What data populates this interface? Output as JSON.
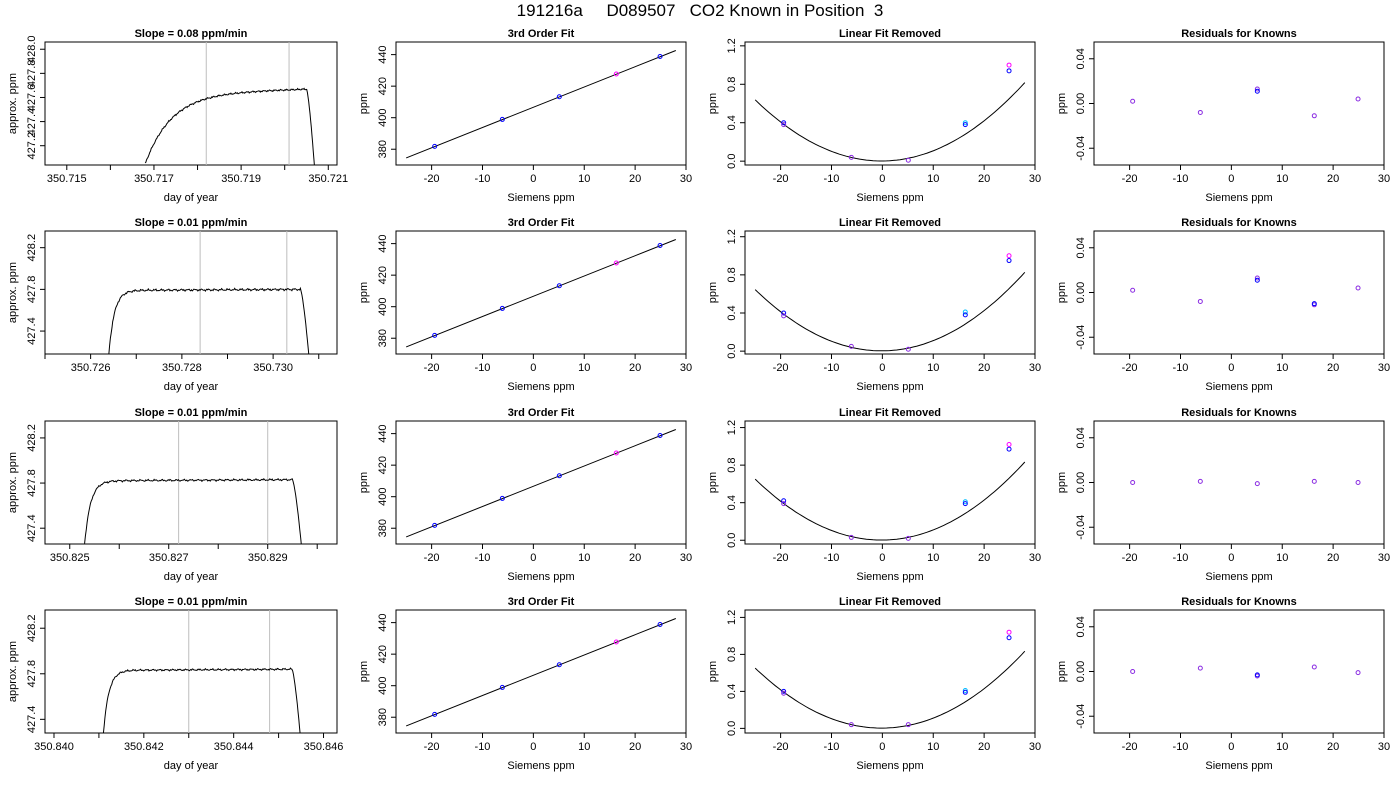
{
  "page_title": "191216a     D089507   CO2 Known in Position  3",
  "colors": {
    "line": "#000000",
    "frame": "#000000",
    "window_marker": "#bebebe",
    "point_blue": "#0000ff",
    "point_magenta": "#ff00ff",
    "point_cyan": "#00bfff",
    "point_purple": "#8a2be2"
  },
  "chart_data": [
    {
      "type": "line",
      "title": "Slope =  0.08  ppm/min",
      "xlabel": "day of year",
      "ylabel": "approx. ppm",
      "xlim": [
        350.7145,
        350.7212
      ],
      "ylim": [
        427.04,
        428.06
      ],
      "xticks": [
        350.715,
        350.716,
        350.717,
        350.718,
        350.719,
        350.72,
        350.721
      ],
      "xtick_labels": [
        "350.715",
        "",
        "350.717",
        "",
        "350.719",
        "",
        "350.721"
      ],
      "yticks": [
        427.2,
        427.4,
        427.6,
        427.8,
        428.0
      ],
      "ytick_labels": [
        "427.2",
        "427.4",
        "427.6",
        "427.8",
        "428.0"
      ],
      "window_markers": [
        350.7182,
        350.7201
      ],
      "trace": {
        "start": 350.7168,
        "end": 350.7207,
        "base": 427.05,
        "plateau": 427.63,
        "rise_time": 0.0006,
        "ramp_to": 350.7205,
        "ramp_level": 427.67,
        "noise": 0.008
      }
    },
    {
      "type": "line",
      "title": "Slope =  0.01  ppm/min",
      "xlabel": "day of year",
      "ylabel": "approx. ppm",
      "xlim": [
        350.725,
        350.7314
      ],
      "ylim": [
        427.18,
        428.36
      ],
      "xticks": [
        350.725,
        350.726,
        350.727,
        350.728,
        350.729,
        350.73,
        350.731
      ],
      "xtick_labels": [
        "",
        "350.726",
        "",
        "350.728",
        "",
        "350.730",
        ""
      ],
      "yticks": [
        427.4,
        427.8,
        428.2
      ],
      "ytick_labels": [
        "427.4",
        "427.8",
        "428.2"
      ],
      "window_markers": [
        350.7284,
        350.7303
      ],
      "trace": {
        "start": 350.7264,
        "end": 350.7308,
        "base": 427.18,
        "plateau": 427.79,
        "rise_time": 0.00012,
        "ramp_to": 350.7306,
        "ramp_level": 427.8,
        "noise": 0.012
      }
    },
    {
      "type": "line",
      "title": "Slope =  0.01  ppm/min",
      "xlabel": "day of year",
      "ylabel": "approx. ppm",
      "xlim": [
        350.8245,
        350.8304
      ],
      "ylim": [
        427.26,
        428.35
      ],
      "xticks": [
        350.825,
        350.826,
        350.827,
        350.828,
        350.829,
        350.83
      ],
      "xtick_labels": [
        "350.825",
        "",
        "350.827",
        "",
        "350.829",
        ""
      ],
      "yticks": [
        427.4,
        427.8,
        428.2
      ],
      "ytick_labels": [
        "427.4",
        "427.8",
        "428.2"
      ],
      "window_markers": [
        350.8272,
        350.829
      ],
      "trace": {
        "start": 350.8253,
        "end": 350.8297,
        "base": 427.26,
        "plateau": 427.82,
        "rise_time": 0.00012,
        "ramp_to": 350.8295,
        "ramp_level": 427.83,
        "noise": 0.01
      }
    },
    {
      "type": "line",
      "title": "Slope =  0.01  ppm/min",
      "xlabel": "day of year",
      "ylabel": "approx. ppm",
      "xlim": [
        350.8398,
        350.8463
      ],
      "ylim": [
        427.28,
        428.36
      ],
      "xticks": [
        350.84,
        350.841,
        350.842,
        350.843,
        350.844,
        350.845,
        350.846
      ],
      "xtick_labels": [
        "350.840",
        "",
        "350.842",
        "",
        "350.844",
        "",
        "350.846"
      ],
      "yticks": [
        427.4,
        427.8,
        428.2
      ],
      "ytick_labels": [
        "427.4",
        "427.8",
        "428.2"
      ],
      "window_markers": [
        350.843,
        350.8448
      ],
      "trace": {
        "start": 350.8411,
        "end": 350.8455,
        "base": 427.28,
        "plateau": 427.83,
        "rise_time": 0.00012,
        "ramp_to": 350.8453,
        "ramp_level": 427.84,
        "noise": 0.009
      }
    },
    {
      "type": "scatter",
      "title": "3rd Order Fit",
      "xlabel": "Siemens ppm",
      "ylabel": "ppm",
      "xlim": [
        -27,
        30
      ],
      "ylim": [
        370,
        448
      ],
      "xticks": [
        -20,
        -10,
        0,
        10,
        20,
        30
      ],
      "xtick_labels": [
        "-20",
        "-10",
        "0",
        "10",
        "20",
        "30"
      ],
      "yticks": [
        380,
        400,
        420,
        440
      ],
      "ytick_labels": [
        "380",
        "400",
        "420",
        "440"
      ],
      "x": [
        -19.4,
        -6.1,
        5.1,
        16.3,
        24.9
      ],
      "y": [
        381.8,
        398.9,
        413.3,
        427.7,
        438.8
      ],
      "point_colors": [
        "blue",
        "blue",
        "blue",
        "magenta",
        "blue"
      ],
      "fit_line": {
        "x": [
          -25,
          28
        ],
        "y": [
          374.5,
          442.6
        ]
      }
    },
    {
      "type": "scatter",
      "title": "3rd Order Fit",
      "xlabel": "Siemens ppm",
      "ylabel": "ppm",
      "xlim": [
        -27,
        30
      ],
      "ylim": [
        370,
        448
      ],
      "xticks": [
        -20,
        -10,
        0,
        10,
        20,
        30
      ],
      "xtick_labels": [
        "-20",
        "-10",
        "0",
        "10",
        "20",
        "30"
      ],
      "yticks": [
        380,
        400,
        420,
        440
      ],
      "ytick_labels": [
        "380",
        "400",
        "420",
        "440"
      ],
      "x": [
        -19.4,
        -6.1,
        5.1,
        16.3,
        24.9
      ],
      "y": [
        381.8,
        398.9,
        413.3,
        427.7,
        438.8
      ],
      "point_colors": [
        "blue",
        "blue",
        "blue",
        "magenta",
        "blue"
      ],
      "fit_line": {
        "x": [
          -25,
          28
        ],
        "y": [
          374.5,
          442.6
        ]
      }
    },
    {
      "type": "scatter",
      "title": "3rd Order Fit",
      "xlabel": "Siemens ppm",
      "ylabel": "ppm",
      "xlim": [
        -27,
        30
      ],
      "ylim": [
        370,
        448
      ],
      "xticks": [
        -20,
        -10,
        0,
        10,
        20,
        30
      ],
      "xtick_labels": [
        "-20",
        "-10",
        "0",
        "10",
        "20",
        "30"
      ],
      "yticks": [
        380,
        400,
        420,
        440
      ],
      "ytick_labels": [
        "380",
        "400",
        "420",
        "440"
      ],
      "x": [
        -19.4,
        -6.1,
        5.1,
        16.3,
        24.9
      ],
      "y": [
        381.8,
        398.9,
        413.3,
        427.7,
        438.8
      ],
      "point_colors": [
        "blue",
        "blue",
        "blue",
        "magenta",
        "blue"
      ],
      "fit_line": {
        "x": [
          -25,
          28
        ],
        "y": [
          374.5,
          442.6
        ]
      }
    },
    {
      "type": "scatter",
      "title": "3rd Order Fit",
      "xlabel": "Siemens ppm",
      "ylabel": "ppm",
      "xlim": [
        -27,
        30
      ],
      "ylim": [
        370,
        448
      ],
      "xticks": [
        -20,
        -10,
        0,
        10,
        20,
        30
      ],
      "xtick_labels": [
        "-20",
        "-10",
        "0",
        "10",
        "20",
        "30"
      ],
      "yticks": [
        380,
        400,
        420,
        440
      ],
      "ytick_labels": [
        "380",
        "400",
        "420",
        "440"
      ],
      "x": [
        -19.4,
        -6.1,
        5.1,
        16.3,
        24.9
      ],
      "y": [
        381.8,
        398.9,
        413.3,
        427.7,
        438.8
      ],
      "point_colors": [
        "blue",
        "blue",
        "blue",
        "magenta",
        "blue"
      ],
      "fit_line": {
        "x": [
          -25,
          28
        ],
        "y": [
          374.5,
          442.6
        ]
      }
    },
    {
      "type": "scatter",
      "title": "Linear Fit Removed",
      "xlabel": "Siemens ppm",
      "ylabel": "ppm",
      "xlim": [
        -27,
        30
      ],
      "ylim": [
        -0.04,
        1.24
      ],
      "xticks": [
        -20,
        -10,
        0,
        10,
        20,
        30
      ],
      "xtick_labels": [
        "-20",
        "-10",
        "0",
        "10",
        "20",
        "30"
      ],
      "yticks": [
        0.0,
        0.4,
        0.8,
        1.2
      ],
      "ytick_labels": [
        "0.0",
        "0.4",
        "0.8",
        "1.2"
      ],
      "x": [
        -19.4,
        -19.4,
        -6.1,
        5.1,
        16.3,
        16.3,
        24.9,
        24.9
      ],
      "y": [
        0.4,
        0.38,
        0.04,
        0.01,
        0.4,
        0.38,
        0.94,
        1.0
      ],
      "point_colors": [
        "blue",
        "purple",
        "purple",
        "purple",
        "cyan",
        "blue",
        "blue",
        "magenta"
      ],
      "curve": {
        "x": [
          -25,
          28
        ],
        "a": 0.00103,
        "b": 0.0003,
        "c": 0.002
      }
    },
    {
      "type": "scatter",
      "title": "Linear Fit Removed",
      "xlabel": "Siemens ppm",
      "ylabel": "ppm",
      "xlim": [
        -27,
        30
      ],
      "ylim": [
        -0.03,
        1.26
      ],
      "xticks": [
        -20,
        -10,
        0,
        10,
        20,
        30
      ],
      "xtick_labels": [
        "-20",
        "-10",
        "0",
        "10",
        "20",
        "30"
      ],
      "yticks": [
        0.0,
        0.4,
        0.8,
        1.2
      ],
      "ytick_labels": [
        "0.0",
        "0.4",
        "0.8",
        "1.2"
      ],
      "x": [
        -19.4,
        -19.4,
        -6.1,
        5.1,
        16.3,
        16.3,
        24.9,
        24.9
      ],
      "y": [
        0.4,
        0.37,
        0.05,
        0.02,
        0.41,
        0.38,
        0.95,
        1.0
      ],
      "point_colors": [
        "blue",
        "purple",
        "purple",
        "purple",
        "cyan",
        "blue",
        "blue",
        "magenta"
      ],
      "curve": {
        "x": [
          -25,
          28
        ],
        "a": 0.00104,
        "b": 0.0003,
        "c": 0.003
      }
    },
    {
      "type": "scatter",
      "title": "Linear Fit Removed",
      "xlabel": "Siemens ppm",
      "ylabel": "ppm",
      "xlim": [
        -27,
        30
      ],
      "ylim": [
        -0.04,
        1.27
      ],
      "xticks": [
        -20,
        -10,
        0,
        10,
        20,
        30
      ],
      "xtick_labels": [
        "-20",
        "-10",
        "0",
        "10",
        "20",
        "30"
      ],
      "yticks": [
        0.0,
        0.4,
        0.8,
        1.2
      ],
      "ytick_labels": [
        "0.0",
        "0.4",
        "0.8",
        "1.2"
      ],
      "x": [
        -19.4,
        -19.4,
        -6.1,
        5.1,
        16.3,
        16.3,
        24.9,
        24.9
      ],
      "y": [
        0.42,
        0.39,
        0.03,
        0.02,
        0.41,
        0.39,
        0.97,
        1.02
      ],
      "point_colors": [
        "blue",
        "purple",
        "purple",
        "purple",
        "cyan",
        "blue",
        "blue",
        "magenta"
      ],
      "curve": {
        "x": [
          -25,
          28
        ],
        "a": 0.00105,
        "b": 0.0003,
        "c": 0.002
      }
    },
    {
      "type": "scatter",
      "title": "Linear Fit Removed",
      "xlabel": "Siemens ppm",
      "ylabel": "ppm",
      "xlim": [
        -27,
        30
      ],
      "ylim": [
        -0.05,
        1.28
      ],
      "xticks": [
        -20,
        -10,
        0,
        10,
        20,
        30
      ],
      "xtick_labels": [
        "-20",
        "-10",
        "0",
        "10",
        "20",
        "30"
      ],
      "yticks": [
        0.0,
        0.4,
        0.8,
        1.2
      ],
      "ytick_labels": [
        "0.0",
        "0.4",
        "0.8",
        "1.2"
      ],
      "x": [
        -19.4,
        -19.4,
        -6.1,
        5.1,
        16.3,
        16.3,
        24.9,
        24.9
      ],
      "y": [
        0.4,
        0.38,
        0.04,
        0.04,
        0.41,
        0.39,
        0.98,
        1.04
      ],
      "point_colors": [
        "blue",
        "purple",
        "purple",
        "purple",
        "cyan",
        "blue",
        "blue",
        "magenta"
      ],
      "curve": {
        "x": [
          -25,
          28
        ],
        "a": 0.00105,
        "b": 0.0003,
        "c": 0.003
      }
    },
    {
      "type": "scatter",
      "title": "Residuals for Knowns",
      "xlabel": "Siemens ppm",
      "ylabel": "ppm",
      "xlim": [
        -27,
        30
      ],
      "ylim": [
        -0.055,
        0.055
      ],
      "xticks": [
        -20,
        -10,
        0,
        10,
        20,
        30
      ],
      "xtick_labels": [
        "-20",
        "-10",
        "0",
        "10",
        "20",
        "30"
      ],
      "yticks": [
        -0.04,
        0.0,
        0.04
      ],
      "ytick_labels": [
        "-0.04",
        "0.00",
        "0.04"
      ],
      "x": [
        -19.4,
        -6.1,
        5.1,
        16.3,
        24.9
      ],
      "y": [
        0.002,
        -0.008,
        0.013,
        -0.011,
        0.004
      ],
      "y_double": [
        null,
        null,
        0.011,
        null,
        null
      ]
    },
    {
      "type": "scatter",
      "title": "Residuals for Knowns",
      "xlabel": "Siemens ppm",
      "ylabel": "ppm",
      "xlim": [
        -27,
        30
      ],
      "ylim": [
        -0.055,
        0.055
      ],
      "xticks": [
        -20,
        -10,
        0,
        10,
        20,
        30
      ],
      "xtick_labels": [
        "-20",
        "-10",
        "0",
        "10",
        "20",
        "30"
      ],
      "yticks": [
        -0.04,
        0.0,
        0.04
      ],
      "ytick_labels": [
        "-0.04",
        "0.00",
        "0.04"
      ],
      "x": [
        -19.4,
        -6.1,
        5.1,
        16.3,
        24.9
      ],
      "y": [
        0.002,
        -0.008,
        0.013,
        -0.011,
        0.004
      ],
      "y_double": [
        null,
        null,
        0.011,
        -0.01,
        null
      ]
    },
    {
      "type": "scatter",
      "title": "Residuals for Knowns",
      "xlabel": "Siemens ppm",
      "ylabel": "ppm",
      "xlim": [
        -27,
        30
      ],
      "ylim": [
        -0.055,
        0.055
      ],
      "xticks": [
        -20,
        -10,
        0,
        10,
        20,
        30
      ],
      "xtick_labels": [
        "-20",
        "-10",
        "0",
        "10",
        "20",
        "30"
      ],
      "yticks": [
        -0.04,
        0.0,
        0.04
      ],
      "ytick_labels": [
        "-0.04",
        "0.00",
        "0.04"
      ],
      "x": [
        -19.4,
        -6.1,
        5.1,
        16.3,
        24.9
      ],
      "y": [
        0.0,
        0.001,
        -0.001,
        0.001,
        0.0
      ],
      "y_double": [
        null,
        null,
        null,
        null,
        null
      ]
    },
    {
      "type": "scatter",
      "title": "Residuals for Knowns",
      "xlabel": "Siemens ppm",
      "ylabel": "ppm",
      "xlim": [
        -27,
        30
      ],
      "ylim": [
        -0.055,
        0.055
      ],
      "xticks": [
        -20,
        -10,
        0,
        10,
        20,
        30
      ],
      "xtick_labels": [
        "-20",
        "-10",
        "0",
        "10",
        "20",
        "30"
      ],
      "yticks": [
        -0.04,
        0.0,
        0.04
      ],
      "ytick_labels": [
        "-0.04",
        "0.00",
        "0.04"
      ],
      "x": [
        -19.4,
        -6.1,
        5.1,
        16.3,
        24.9
      ],
      "y": [
        0.0,
        0.003,
        -0.004,
        0.004,
        -0.001
      ],
      "y_double": [
        null,
        null,
        -0.003,
        null,
        null
      ]
    }
  ]
}
